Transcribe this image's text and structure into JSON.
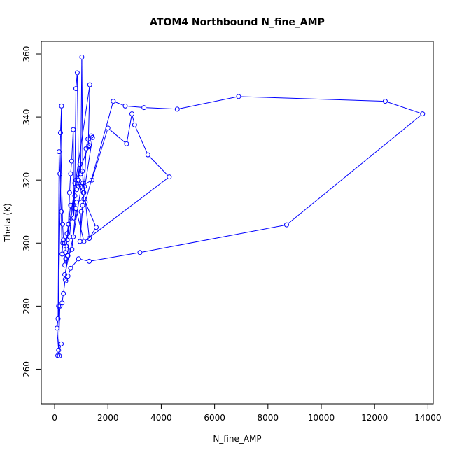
{
  "chart_data": {
    "type": "scatter",
    "title": "ATOM4 Northbound N_fine_AMP",
    "xlabel": "N_fine_AMP",
    "ylabel": "Theta (K)",
    "xlim": [
      -500,
      14200
    ],
    "ylim": [
      249,
      364
    ],
    "xticks": [
      0,
      2000,
      4000,
      6000,
      8000,
      10000,
      12000,
      14000
    ],
    "yticks": [
      260,
      280,
      300,
      320,
      340,
      360
    ],
    "grid": false,
    "legend": "none",
    "style": "line-and-points",
    "color": "#0000ff",
    "series": [
      {
        "x": [
          250,
          120,
          180,
          150,
          260,
          220,
          300,
          330,
          380,
          430,
          410,
          470,
          520,
          560,
          600,
          640,
          700,
          720,
          760,
          800,
          850,
          900,
          950,
          980,
          1020,
          1060,
          1120,
          1180,
          1250,
          1300,
          1380,
          1420,
          1100,
          950,
          1000,
          1050,
          1150,
          2200,
          2650,
          3350,
          4600,
          6900,
          12400,
          13800,
          8700,
          3200,
          1300,
          900,
          600,
          500,
          420,
          380,
          700,
          1000,
          1400,
          2000,
          2700,
          2900,
          3000,
          3500,
          4300,
          1100,
          800,
          650,
          500,
          420,
          380,
          350,
          310,
          280,
          250,
          200,
          170,
          130,
          90,
          150,
          200,
          280,
          330,
          400,
          480,
          560,
          620,
          690,
          760,
          830,
          900,
          980,
          1040,
          1300,
          1560,
          1100,
          820,
          600,
          520,
          470,
          1320,
          1260,
          800,
          1080
        ],
        "y": [
          268,
          264.3,
          264.2,
          280,
          343.5,
          335,
          306,
          301,
          300,
          299,
          297,
          303,
          306,
          316,
          322,
          326,
          336,
          308,
          319,
          349,
          354,
          320,
          325,
          322,
          359,
          319,
          318,
          330,
          333,
          331,
          334,
          333.5,
          316,
          300.5,
          310,
          312,
          313,
          345,
          343.5,
          343,
          342.5,
          346.5,
          345,
          341,
          305.8,
          297,
          294.2,
          295,
          292,
          289.5,
          288,
          290,
          302,
          318,
          320,
          336.5,
          331.5,
          341,
          337.5,
          328,
          321,
          300.5,
          311,
          298,
          296,
          295,
          293,
          299,
          300,
          296.5,
          310,
          322,
          329,
          276,
          273,
          266,
          280,
          281,
          284,
          288.5,
          296,
          302,
          308,
          312,
          315,
          317,
          318,
          322,
          322.8,
          301.5,
          305,
          314,
          313,
          312,
          306,
          301,
          350.2,
          330.5,
          320,
          316
        ]
      }
    ]
  }
}
